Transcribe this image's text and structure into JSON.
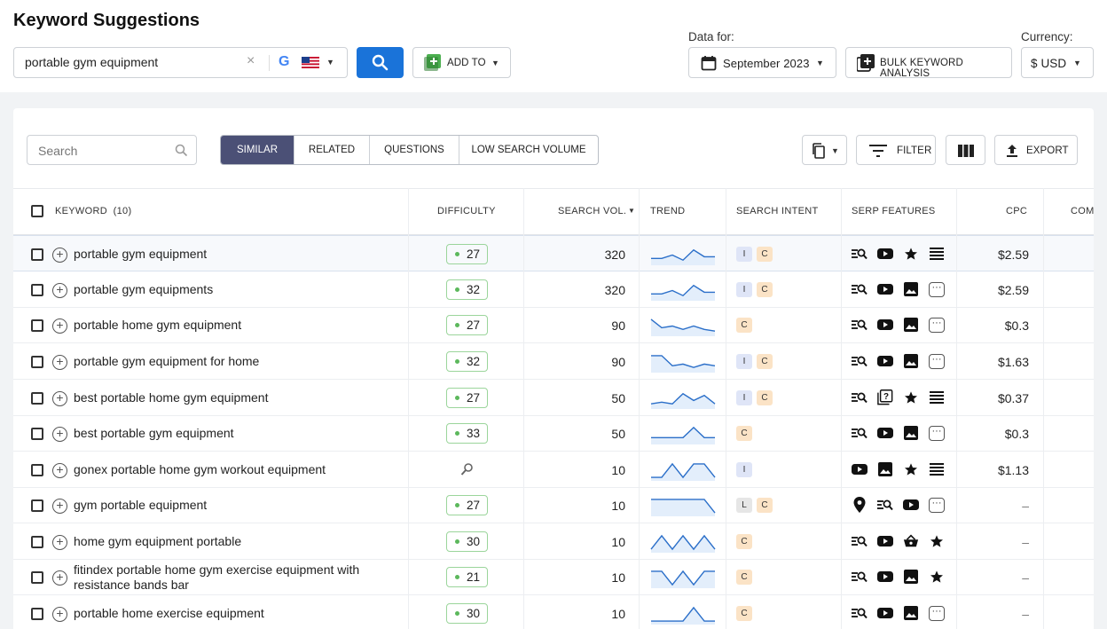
{
  "page_title": "Keyword Suggestions",
  "search": {
    "value": "portable gym equipment",
    "clear": "×",
    "engine": "G"
  },
  "add_to": {
    "label": "ADD TO"
  },
  "data_for": {
    "label": "Data for:",
    "value": "September 2023"
  },
  "bulk": {
    "label": "BULK KEYWORD ANALYSIS"
  },
  "currency": {
    "label": "Currency:",
    "value": "$ USD"
  },
  "table_search": {
    "placeholder": "Search"
  },
  "tabs": [
    "SIMILAR",
    "RELATED",
    "QUESTIONS",
    "LOW SEARCH VOLUME"
  ],
  "toolbar": {
    "filter": "FILTER",
    "export": "EXPORT"
  },
  "columns": {
    "keyword": "KEYWORD",
    "keyword_count": "(10)",
    "difficulty": "DIFFICULTY",
    "search_vol": "SEARCH VOL.",
    "trend": "TREND",
    "intent": "SEARCH INTENT",
    "serp": "SERP FEATURES",
    "cpc": "CPC",
    "com": "COM"
  },
  "colors": {
    "accent": "#1a73d9",
    "active_tab": "#4b5076",
    "difficulty_border": "#9bd59b",
    "intent_i": "#dfe5f7",
    "intent_c": "#fbe3c6"
  },
  "rows": [
    {
      "keyword": "portable gym equipment",
      "difficulty": "27",
      "volume": "320",
      "trend": [
        0.3,
        0.3,
        0.5,
        0.2,
        0.8,
        0.4,
        0.4
      ],
      "intent": [
        "I",
        "C"
      ],
      "serp": [
        "search-icon",
        "video-icon",
        "star-icon",
        "list-icon"
      ],
      "cpc": "$2.59"
    },
    {
      "keyword": "portable gym equipments",
      "difficulty": "32",
      "volume": "320",
      "trend": [
        0.3,
        0.3,
        0.5,
        0.2,
        0.8,
        0.4,
        0.4
      ],
      "intent": [
        "I",
        "C"
      ],
      "serp": [
        "search-icon",
        "video-icon",
        "image-icon",
        "more-icon"
      ],
      "cpc": "$2.59"
    },
    {
      "keyword": "portable home gym equipment",
      "difficulty": "27",
      "volume": "90",
      "trend": [
        0.9,
        0.4,
        0.5,
        0.3,
        0.5,
        0.3,
        0.2
      ],
      "intent": [
        "C"
      ],
      "serp": [
        "search-icon",
        "video-icon",
        "image-icon",
        "more-icon"
      ],
      "cpc": "$0.3"
    },
    {
      "keyword": "portable gym equipment for home",
      "difficulty": "32",
      "volume": "90",
      "trend": [
        0.9,
        0.9,
        0.3,
        0.4,
        0.2,
        0.4,
        0.3
      ],
      "intent": [
        "I",
        "C"
      ],
      "serp": [
        "search-icon",
        "video-icon",
        "image-icon",
        "more-icon"
      ],
      "cpc": "$1.63"
    },
    {
      "keyword": "best portable home gym equipment",
      "difficulty": "27",
      "volume": "50",
      "trend": [
        0.2,
        0.3,
        0.2,
        0.8,
        0.4,
        0.7,
        0.2
      ],
      "intent": [
        "I",
        "C"
      ],
      "serp": [
        "search-icon",
        "question-icon",
        "star-icon",
        "list-icon"
      ],
      "cpc": "$0.37"
    },
    {
      "keyword": "best portable gym equipment",
      "difficulty": "33",
      "volume": "50",
      "trend": [
        0.3,
        0.3,
        0.3,
        0.3,
        0.9,
        0.3,
        0.3
      ],
      "intent": [
        "C"
      ],
      "serp": [
        "search-icon",
        "video-icon",
        "image-icon",
        "more-icon"
      ],
      "cpc": "$0.3"
    },
    {
      "keyword": "gonex portable home gym workout equipment",
      "difficulty": "",
      "volume": "10",
      "trend": [
        0.1,
        0.1,
        0.9,
        0.1,
        0.9,
        0.9,
        0.1
      ],
      "intent": [
        "I"
      ],
      "serp": [
        "video-icon",
        "image-icon",
        "star-icon",
        "list-icon"
      ],
      "cpc": "$1.13"
    },
    {
      "keyword": "gym portable equipment",
      "difficulty": "27",
      "volume": "10",
      "trend": [
        0.9,
        0.9,
        0.9,
        0.9,
        0.9,
        0.9,
        0.1
      ],
      "intent": [
        "L",
        "C"
      ],
      "serp": [
        "pin-icon",
        "search-icon",
        "video-icon",
        "more-icon"
      ],
      "cpc": "–"
    },
    {
      "keyword": "home gym equipment portable",
      "difficulty": "30",
      "volume": "10",
      "trend": [
        0.1,
        0.9,
        0.1,
        0.9,
        0.1,
        0.9,
        0.1
      ],
      "intent": [
        "C"
      ],
      "serp": [
        "search-icon",
        "video-icon",
        "basket-icon",
        "star-icon"
      ],
      "cpc": "–"
    },
    {
      "keyword": "fitindex portable home gym exercise equipment with resistance bands bar",
      "difficulty": "21",
      "volume": "10",
      "trend": [
        0.9,
        0.9,
        0.1,
        0.9,
        0.1,
        0.9,
        0.9
      ],
      "intent": [
        "C"
      ],
      "serp": [
        "search-icon",
        "video-icon",
        "image-icon",
        "star-icon"
      ],
      "cpc": "–"
    },
    {
      "keyword": "portable home exercise equipment",
      "difficulty": "30",
      "volume": "10",
      "trend": [
        0.1,
        0.1,
        0.1,
        0.1,
        0.9,
        0.1,
        0.1
      ],
      "intent": [
        "C"
      ],
      "serp": [
        "search-icon",
        "video-icon",
        "image-icon",
        "more-icon"
      ],
      "cpc": "–"
    }
  ]
}
